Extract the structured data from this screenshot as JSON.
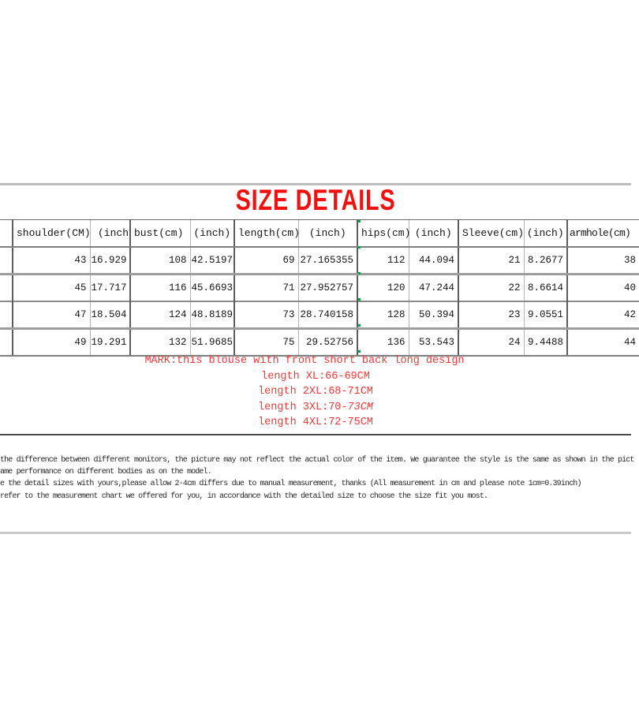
{
  "title": "SIZE DETAILS",
  "colors": {
    "title_red": "#f2100e",
    "note_red": "#f03a3a",
    "tick_green": "#00a445"
  },
  "table": {
    "columns": [
      "",
      "shoulder(CM)",
      "(inch",
      "bust(cm)",
      "(inch)",
      "length(cm)",
      "(inch)",
      "hips(cm)",
      "(inch)",
      "Sleeve(cm)",
      "(inch)",
      "armhole(cm)"
    ],
    "rows": [
      [
        "",
        "43",
        "16.929",
        "108",
        "42.5197",
        "69",
        "27.165355",
        "112",
        "44.094",
        "21",
        "8.2677",
        "38"
      ],
      [
        "",
        "45",
        "17.717",
        "116",
        "45.6693",
        "71",
        "27.952757",
        "120",
        "47.244",
        "22",
        "8.6614",
        "40"
      ],
      [
        "",
        "47",
        "18.504",
        "124",
        "48.8189",
        "73",
        "28.740158",
        "128",
        "50.394",
        "23",
        "9.0551",
        "42"
      ],
      [
        "",
        "49",
        "19.291",
        "132",
        "51.9685",
        "75",
        "29.52756",
        "136",
        "53.543",
        "24",
        "9.4488",
        "44"
      ]
    ]
  },
  "notes": {
    "mark": "MARK:this blouse with front short back long design",
    "line_xl": "length XL:66-69CM",
    "line_2xl": "length 2XL:68-71CM",
    "line_3xl_prefix": "length 3XL:70-",
    "line_3xl_italic": "73CM",
    "line_4xl": "length 4XL:72-75CM"
  },
  "disclaimer": {
    "line1": "the difference between different monitors, the picture may not reflect the actual color of the item. We guarantee the style is the same as shown in the pict",
    "line2": "ame performance on different bodies as on the model.",
    "line3": "e the detail sizes with yours,please allow 2-4cm differs due to manual measurement, thanks (All measurement in cm and please note 1cm=0.39inch)",
    "line4": "refer to the measurement chart we offered for you, in accordance with the detailed size to choose the size fit you most."
  }
}
